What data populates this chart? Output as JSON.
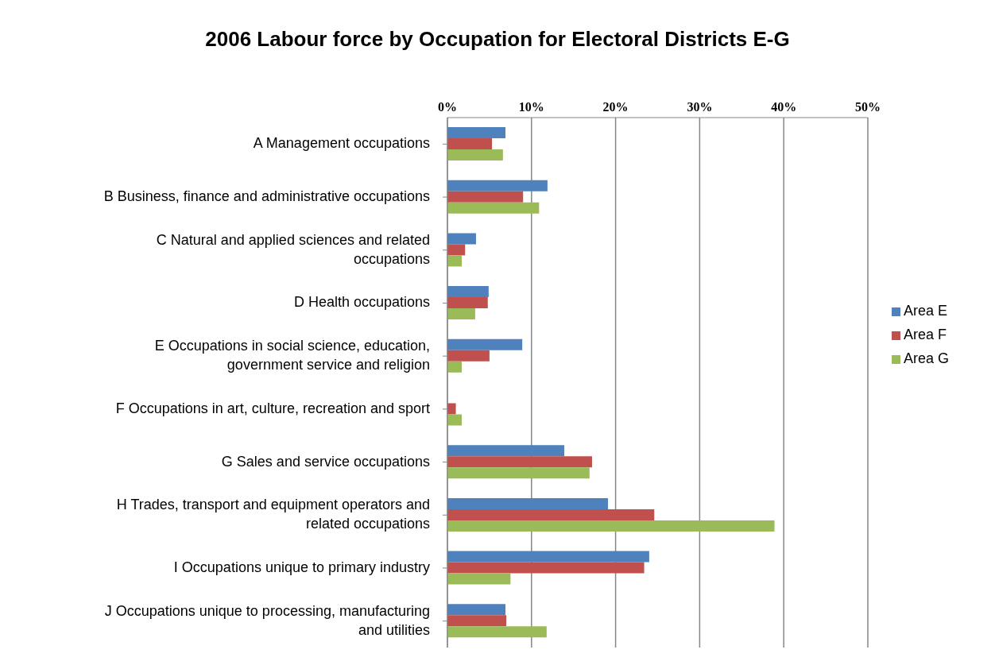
{
  "chart_data": {
    "type": "bar",
    "orientation": "horizontal",
    "title": "2006 Labour force by Occupation for Electoral Districts E-G",
    "categories": [
      "A Management occupations",
      "B Business, finance and administrative occupations",
      "C Natural and applied sciences and related occupations",
      "D Health occupations",
      "E Occupations in social science, education, government service and religion",
      "F Occupations in art, culture, recreation and sport",
      "G Sales and service occupations",
      "H Trades, transport and equipment operators and related occupations",
      "I Occupations unique to primary industry",
      "J Occupations unique to processing, manufacturing and utilities"
    ],
    "series": [
      {
        "name": "Area E",
        "color": "#4f81bd",
        "values": [
          6.9,
          11.9,
          3.4,
          4.9,
          8.9,
          0,
          13.9,
          19.1,
          24.0,
          6.9
        ]
      },
      {
        "name": "Area F",
        "color": "#c0504d",
        "values": [
          5.3,
          9.0,
          2.1,
          4.8,
          5.0,
          1.0,
          17.2,
          24.6,
          23.4,
          7.0
        ]
      },
      {
        "name": "Area G",
        "color": "#9bbb59",
        "values": [
          6.6,
          10.9,
          1.7,
          3.3,
          1.7,
          1.7,
          16.9,
          38.9,
          7.5,
          11.8
        ]
      }
    ],
    "xlim": [
      0,
      50
    ],
    "xticks": [
      {
        "value": 0,
        "label": "0%"
      },
      {
        "value": 10,
        "label": "10%"
      },
      {
        "value": 20,
        "label": "20%"
      },
      {
        "value": 30,
        "label": "30%"
      },
      {
        "value": 40,
        "label": "40%"
      },
      {
        "value": 50,
        "label": "50%"
      }
    ],
    "grid": "x",
    "legend": "right"
  }
}
